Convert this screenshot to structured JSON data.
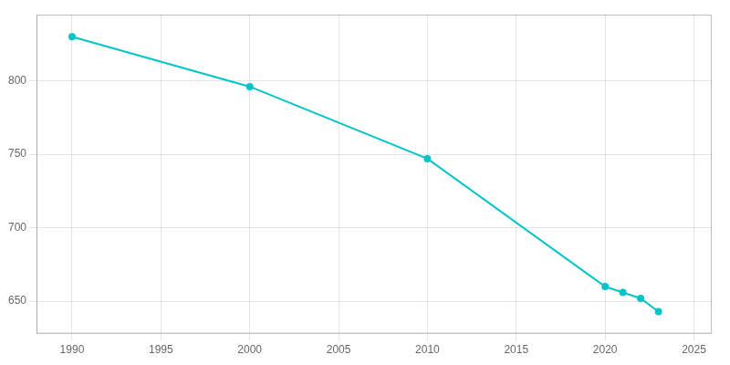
{
  "chart_data": {
    "type": "line",
    "x": [
      1990,
      2000,
      2010,
      2020,
      2021,
      2022,
      2023
    ],
    "values": [
      830,
      796,
      747,
      660,
      656,
      652,
      643
    ],
    "color": "#00C5C8",
    "marker": "circle",
    "xlim": [
      1988,
      2026
    ],
    "xticks": [
      1990,
      1995,
      2000,
      2005,
      2010,
      2015,
      2020,
      2025
    ],
    "ylim": [
      628,
      845
    ],
    "yticks": [
      650,
      700,
      750,
      800
    ],
    "grid": true
  }
}
